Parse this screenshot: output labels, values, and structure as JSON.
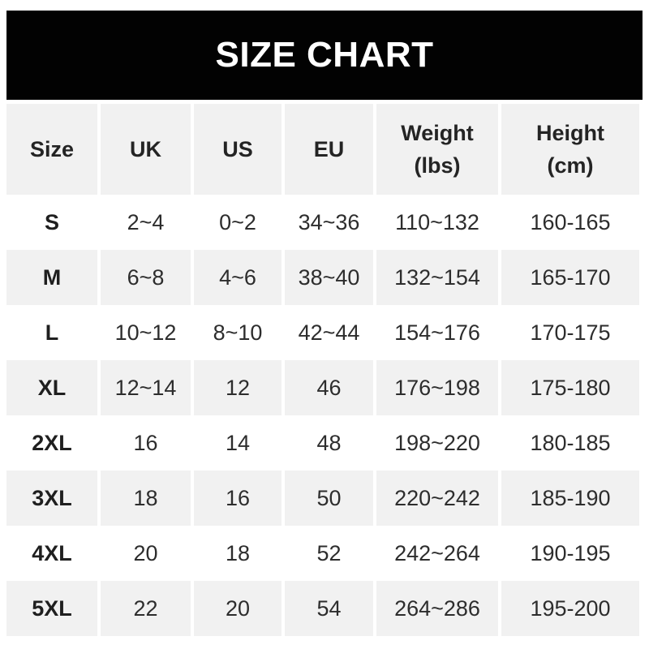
{
  "title_banner": {
    "text": "SIZE CHART"
  },
  "table": {
    "columns_display": [
      "Size",
      "UK",
      "US",
      "EU",
      "Weight\n(lbs)",
      "Height\n(cm)"
    ]
  },
  "chart_data": {
    "type": "table",
    "title": "SIZE CHART",
    "columns": [
      "Size",
      "UK",
      "US",
      "EU",
      "Weight (lbs)",
      "Height (cm)"
    ],
    "rows": [
      [
        "S",
        "2~4",
        "0~2",
        "34~36",
        "110~132",
        "160-165"
      ],
      [
        "M",
        "6~8",
        "4~6",
        "38~40",
        "132~154",
        "165-170"
      ],
      [
        "L",
        "10~12",
        "8~10",
        "42~44",
        "154~176",
        "170-175"
      ],
      [
        "XL",
        "12~14",
        "12",
        "46",
        "176~198",
        "175-180"
      ],
      [
        "2XL",
        "16",
        "14",
        "48",
        "198~220",
        "180-185"
      ],
      [
        "3XL",
        "18",
        "16",
        "50",
        "220~242",
        "185-190"
      ],
      [
        "4XL",
        "20",
        "18",
        "52",
        "242~264",
        "190-195"
      ],
      [
        "5XL",
        "22",
        "20",
        "54",
        "264~286",
        "195-200"
      ]
    ],
    "layout": {
      "alternating_row_background": true,
      "row_alt_indices_gray": [
        1,
        3,
        5,
        7
      ],
      "header_background": "gray"
    }
  },
  "colors": {
    "banner_bg": "#020202",
    "banner_text": "#ffffff",
    "row_alt_bg": "#f1f1f1",
    "page_bg": "#ffffff",
    "text": "#2d2d2d"
  }
}
